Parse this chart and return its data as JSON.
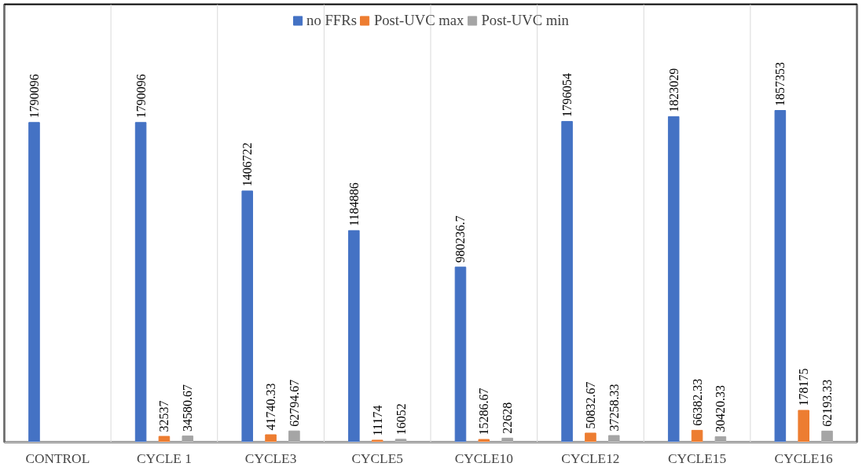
{
  "chart_data": {
    "type": "bar",
    "categories": [
      "CONTROL",
      "CYCLE 1",
      "CYCLE3",
      "CYCLE5",
      "CYCLE10",
      "CYCLE12",
      "CYCLE15",
      "CYCLE16"
    ],
    "series": [
      {
        "name": "no FFRs",
        "color": "#4472c4",
        "values": [
          1790096,
          1790096,
          1406722,
          1184886,
          980236.7,
          1796054,
          1823029,
          1857353
        ]
      },
      {
        "name": "Post-UVC max",
        "color": "#ed7d31",
        "values": [
          null,
          32537,
          41740.33,
          11174,
          15286.67,
          50832.67,
          66382.33,
          178175
        ]
      },
      {
        "name": "Post-UVC min",
        "color": "#a5a5a5",
        "values": [
          null,
          34580.67,
          62794.67,
          16052,
          22628,
          37258.33,
          30420.33,
          62193.33
        ]
      }
    ],
    "data_labels": true,
    "grid": "x",
    "legend": "top"
  }
}
